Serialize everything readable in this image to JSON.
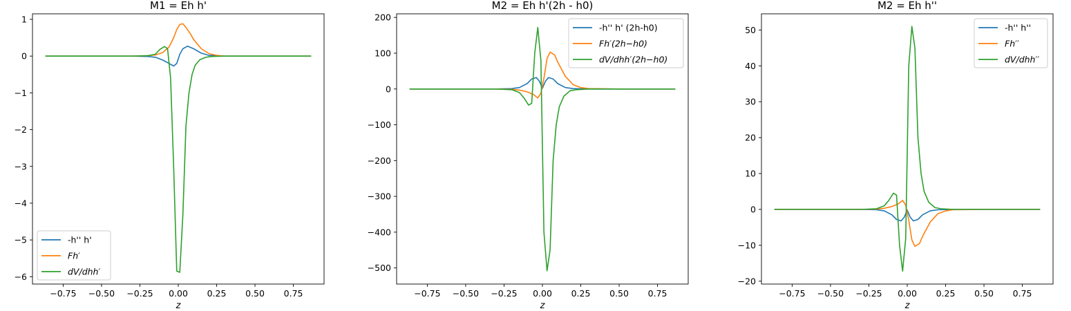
{
  "figure": {
    "background": "#ffffff",
    "colors": {
      "blue": "#1f77b4",
      "orange": "#ff7f0e",
      "green": "#2ca02c"
    }
  },
  "chart_data": [
    {
      "type": "line",
      "title": "M1 = Eh h'",
      "xlabel": "z",
      "ylabel": "",
      "xlim": [
        -0.95,
        0.95
      ],
      "ylim": [
        -6.2,
        1.15
      ],
      "xticks": [
        -0.75,
        -0.5,
        -0.25,
        0,
        0.25,
        0.5,
        0.75
      ],
      "xtick_labels": [
        "−0.75",
        "−0.50",
        "−0.25",
        "0.00",
        "0.25",
        "0.50",
        "0.75"
      ],
      "yticks": [
        -6,
        -5,
        -4,
        -3,
        -2,
        -1,
        0,
        1
      ],
      "ytick_labels": [
        "−6",
        "−5",
        "−4",
        "−3",
        "−2",
        "−1",
        "0",
        "1"
      ],
      "legend": "lower-left",
      "series": [
        {
          "name": "-h'' h'",
          "color": "#1f77b4",
          "x": [
            -0.866,
            -0.5,
            -0.3,
            -0.2,
            -0.15,
            -0.1,
            -0.06,
            -0.03,
            -0.01,
            0.01,
            0.03,
            0.06,
            0.1,
            0.15,
            0.2,
            0.3,
            0.5,
            0.866
          ],
          "y": [
            0,
            0,
            0,
            -0.01,
            -0.03,
            -0.11,
            -0.2,
            -0.27,
            -0.2,
            0.05,
            0.2,
            0.27,
            0.2,
            0.08,
            0.02,
            0,
            0,
            0
          ]
        },
        {
          "name": "Fh′",
          "color": "#ff7f0e",
          "x": [
            -0.866,
            -0.5,
            -0.3,
            -0.2,
            -0.15,
            -0.1,
            -0.06,
            -0.03,
            -0.01,
            0.01,
            0.03,
            0.05,
            0.08,
            0.1,
            0.15,
            0.2,
            0.25,
            0.3,
            0.5,
            0.866
          ],
          "y": [
            0,
            0,
            0,
            0.01,
            0.03,
            0.1,
            0.25,
            0.5,
            0.72,
            0.86,
            0.88,
            0.78,
            0.6,
            0.45,
            0.2,
            0.07,
            0.02,
            0,
            0,
            0
          ]
        },
        {
          "name": "dV/dhh′",
          "color": "#2ca02c",
          "x": [
            -0.866,
            -0.5,
            -0.3,
            -0.2,
            -0.15,
            -0.12,
            -0.09,
            -0.07,
            -0.05,
            -0.03,
            -0.01,
            0.01,
            0.03,
            0.05,
            0.07,
            0.09,
            0.11,
            0.14,
            0.18,
            0.22,
            0.3,
            0.5,
            0.866
          ],
          "y": [
            0,
            0,
            0,
            0.01,
            0.05,
            0.18,
            0.26,
            0.2,
            -0.6,
            -3.0,
            -5.85,
            -5.88,
            -4.3,
            -1.9,
            -1.0,
            -0.5,
            -0.25,
            -0.1,
            -0.03,
            -0.01,
            0,
            0,
            0
          ]
        }
      ]
    },
    {
      "type": "line",
      "title": "M2 = Eh h'(2h - h0)",
      "xlabel": "z",
      "ylabel": "",
      "xlim": [
        -0.95,
        0.95
      ],
      "ylim": [
        -545,
        210
      ],
      "xticks": [
        -0.75,
        -0.5,
        -0.25,
        0,
        0.25,
        0.5,
        0.75
      ],
      "xtick_labels": [
        "−0.75",
        "−0.50",
        "−0.25",
        "0.00",
        "0.25",
        "0.50",
        "0.75"
      ],
      "yticks": [
        -500,
        -400,
        -300,
        -200,
        -100,
        0,
        100,
        200
      ],
      "ytick_labels": [
        "−500",
        "−400",
        "−300",
        "−200",
        "−100",
        "0",
        "100",
        "200"
      ],
      "legend": "upper-right",
      "series": [
        {
          "name": "-h'' h' (2h-h0)",
          "color": "#1f77b4",
          "x": [
            -0.866,
            -0.5,
            -0.3,
            -0.2,
            -0.15,
            -0.1,
            -0.07,
            -0.04,
            -0.02,
            0,
            0.02,
            0.04,
            0.07,
            0.1,
            0.15,
            0.2,
            0.3,
            0.5,
            0.866
          ],
          "y": [
            0,
            0,
            0,
            1,
            4,
            15,
            28,
            32,
            22,
            2,
            22,
            32,
            28,
            15,
            4,
            1,
            0,
            0,
            0
          ]
        },
        {
          "name": "Fh′(2h−h0)",
          "color": "#ff7f0e",
          "x": [
            -0.866,
            -0.5,
            -0.3,
            -0.2,
            -0.15,
            -0.1,
            -0.06,
            -0.03,
            -0.01,
            0.01,
            0.03,
            0.05,
            0.08,
            0.1,
            0.15,
            0.2,
            0.25,
            0.3,
            0.5,
            0.866
          ],
          "y": [
            0,
            0,
            0,
            -1,
            -3,
            -8,
            -15,
            -25,
            -12,
            30,
            85,
            103,
            95,
            75,
            35,
            12,
            4,
            1,
            0,
            0
          ]
        },
        {
          "name": "dV/dhh′(2h−h0)",
          "color": "#2ca02c",
          "x": [
            -0.866,
            -0.5,
            -0.3,
            -0.2,
            -0.15,
            -0.12,
            -0.09,
            -0.07,
            -0.05,
            -0.03,
            -0.01,
            0.01,
            0.03,
            0.05,
            0.07,
            0.09,
            0.11,
            0.14,
            0.18,
            0.22,
            0.3,
            0.5,
            0.866
          ],
          "y": [
            0,
            0,
            0,
            -2,
            -10,
            -25,
            -45,
            -40,
            100,
            172,
            80,
            -400,
            -508,
            -450,
            -200,
            -100,
            -50,
            -20,
            -5,
            -2,
            0,
            0,
            0
          ]
        }
      ]
    },
    {
      "type": "line",
      "title": "M2 = Eh h''",
      "xlabel": "z",
      "ylabel": "",
      "xlim": [
        -0.95,
        0.95
      ],
      "ylim": [
        -20.8,
        54.5
      ],
      "xticks": [
        -0.75,
        -0.5,
        -0.25,
        0,
        0.25,
        0.5,
        0.75
      ],
      "xtick_labels": [
        "−0.75",
        "−0.50",
        "−0.25",
        "0.00",
        "0.25",
        "0.50",
        "0.75"
      ],
      "yticks": [
        -20,
        -10,
        0,
        10,
        20,
        30,
        40,
        50
      ],
      "ytick_labels": [
        "−20",
        "−10",
        "0",
        "10",
        "20",
        "30",
        "40",
        "50"
      ],
      "legend": "upper-right",
      "series": [
        {
          "name": "-h'' h''",
          "color": "#1f77b4",
          "x": [
            -0.866,
            -0.5,
            -0.3,
            -0.2,
            -0.15,
            -0.1,
            -0.07,
            -0.04,
            -0.02,
            0,
            0.02,
            0.04,
            0.07,
            0.1,
            0.15,
            0.2,
            0.3,
            0.5,
            0.866
          ],
          "y": [
            0,
            0,
            0,
            -0.1,
            -0.4,
            -1.5,
            -2.8,
            -3.2,
            -2.2,
            -0.2,
            -2.2,
            -3.2,
            -2.8,
            -1.5,
            -0.4,
            -0.1,
            0,
            0,
            0
          ]
        },
        {
          "name": "Fh′′",
          "color": "#ff7f0e",
          "x": [
            -0.866,
            -0.5,
            -0.3,
            -0.2,
            -0.15,
            -0.1,
            -0.06,
            -0.03,
            -0.01,
            0.01,
            0.03,
            0.05,
            0.08,
            0.1,
            0.15,
            0.2,
            0.25,
            0.3,
            0.5,
            0.866
          ],
          "y": [
            0,
            0,
            0,
            0.1,
            0.3,
            0.8,
            1.5,
            2.5,
            1.2,
            -3.0,
            -8.5,
            -10.3,
            -9.5,
            -7.5,
            -3.5,
            -1.2,
            -0.4,
            -0.1,
            0,
            0
          ]
        },
        {
          "name": "dV/dhh′′",
          "color": "#2ca02c",
          "x": [
            -0.866,
            -0.5,
            -0.3,
            -0.2,
            -0.15,
            -0.12,
            -0.09,
            -0.07,
            -0.05,
            -0.03,
            -0.01,
            0.01,
            0.03,
            0.05,
            0.07,
            0.09,
            0.11,
            0.14,
            0.18,
            0.22,
            0.3,
            0.5,
            0.866
          ],
          "y": [
            0,
            0,
            0,
            0.2,
            1.0,
            2.5,
            4.5,
            4.0,
            -10.0,
            -17.2,
            -8.0,
            40.0,
            51.0,
            45.0,
            20.0,
            10.0,
            5.0,
            2.0,
            0.5,
            0.2,
            0,
            0,
            0
          ]
        }
      ]
    }
  ]
}
